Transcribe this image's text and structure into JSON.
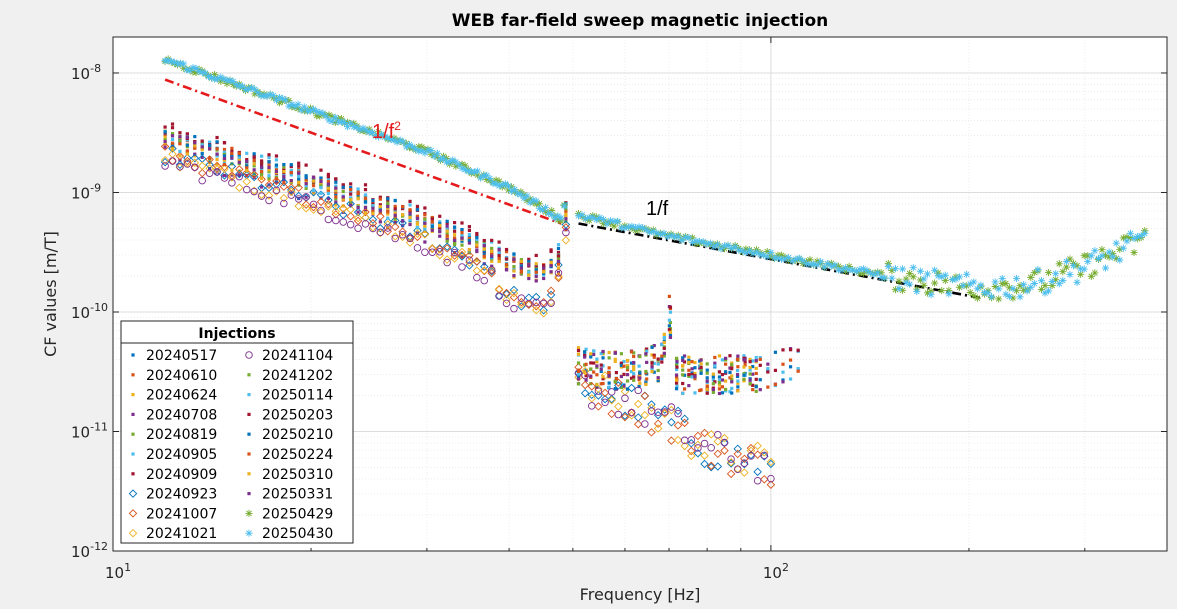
{
  "chart_data": {
    "type": "scatter",
    "title": "WEB far-field sweep magnetic injection",
    "xlabel": "Frequency [Hz]",
    "ylabel": "CF values [m/T]",
    "xscale": "log",
    "yscale": "log",
    "xlim": [
      10,
      400
    ],
    "ylim": [
      1e-12,
      2e-08
    ],
    "x_ticks": [
      {
        "value": 10,
        "base": "10",
        "exp": "1"
      },
      {
        "value": 100,
        "base": "10",
        "exp": "2"
      }
    ],
    "y_ticks": [
      {
        "value": 1e-12,
        "base": "10",
        "exp": "-12"
      },
      {
        "value": 1e-11,
        "base": "10",
        "exp": "-11"
      },
      {
        "value": 1e-10,
        "base": "10",
        "exp": "-10"
      },
      {
        "value": 1e-09,
        "base": "10",
        "exp": "-9"
      },
      {
        "value": 1e-08,
        "base": "10",
        "exp": "-8"
      }
    ],
    "grid": "on (major and minor)",
    "legend": {
      "title": "Injections",
      "placement": "bottom-left",
      "columns": 2
    },
    "series": [
      {
        "name": "20240517",
        "color": "#0072BD",
        "marker": "point",
        "type": "low_band",
        "level": 1.0
      },
      {
        "name": "20240610",
        "color": "#D95319",
        "marker": "point",
        "type": "low_band",
        "level": 1.05
      },
      {
        "name": "20240624",
        "color": "#EDB120",
        "marker": "point",
        "type": "low_band",
        "level": 0.9
      },
      {
        "name": "20240708",
        "color": "#7E2F8E",
        "marker": "point",
        "type": "low_band",
        "level": 0.8
      },
      {
        "name": "20240819",
        "color": "#77AC30",
        "marker": "point",
        "type": "low_band",
        "level": 1.0
      },
      {
        "name": "20240905",
        "color": "#4DBEEE",
        "marker": "point",
        "type": "low_band",
        "level": 1.1
      },
      {
        "name": "20240909",
        "color": "#A2142F",
        "marker": "point",
        "type": "low_band",
        "level": 1.15
      },
      {
        "name": "20240923",
        "color": "#0072BD",
        "marker": "diamond",
        "type": "low_band",
        "level": 0.75,
        "branch": "low"
      },
      {
        "name": "20241007",
        "color": "#D95319",
        "marker": "diamond",
        "type": "low_band",
        "level": 0.75,
        "branch": "low"
      },
      {
        "name": "20241021",
        "color": "#EDB120",
        "marker": "diamond",
        "type": "low_band",
        "level": 0.7,
        "branch": "low"
      },
      {
        "name": "20241104",
        "color": "#7E2F8E",
        "marker": "circle",
        "type": "low_band",
        "level": 0.65,
        "branch": "low"
      },
      {
        "name": "20241202",
        "color": "#77AC30",
        "marker": "point",
        "type": "low_band",
        "level": 1.0
      },
      {
        "name": "20250114",
        "color": "#4DBEEE",
        "marker": "point",
        "type": "low_band",
        "level": 1.0
      },
      {
        "name": "20250203",
        "color": "#A2142F",
        "marker": "point",
        "type": "low_band",
        "level": 1.2
      },
      {
        "name": "20250210",
        "color": "#0072BD",
        "marker": "point",
        "type": "low_band",
        "level": 1.1
      },
      {
        "name": "20250224",
        "color": "#D95319",
        "marker": "point",
        "type": "low_band",
        "level": 1.0
      },
      {
        "name": "20250310",
        "color": "#EDB120",
        "marker": "point",
        "type": "low_band",
        "level": 0.95
      },
      {
        "name": "20250331",
        "color": "#7E2F8E",
        "marker": "point",
        "type": "low_band",
        "level": 1.0
      },
      {
        "name": "20250429",
        "color": "#77AC30",
        "marker": "asterisk",
        "type": "high_band"
      },
      {
        "name": "20250430",
        "color": "#4DBEEE",
        "marker": "asterisk",
        "type": "high_band"
      }
    ],
    "band_models": {
      "low_band_main": [
        [
          12,
          2.8e-09
        ],
        [
          20,
          1.2e-09
        ],
        [
          30,
          5.5e-10
        ],
        [
          40,
          2.6e-10
        ],
        [
          45,
          2.2e-10
        ],
        [
          48,
          3e-10
        ],
        [
          49,
          8e-10
        ]
      ],
      "low_band_after": [
        [
          51,
          3.5e-11
        ],
        [
          60,
          3.2e-11
        ],
        [
          68,
          3.8e-11
        ],
        [
          70,
          1e-10
        ],
        [
          72,
          3e-11
        ],
        [
          90,
          3e-11
        ],
        [
          110,
          3.5e-11
        ]
      ],
      "low_branch_after": [
        [
          51,
          2.5e-11
        ],
        [
          60,
          1.8e-11
        ],
        [
          70,
          1.2e-11
        ],
        [
          80,
          7e-12
        ],
        [
          90,
          6e-12
        ],
        [
          100,
          5e-12
        ]
      ],
      "high_band_before": [
        [
          12,
          1.3e-08
        ],
        [
          20,
          4.8e-09
        ],
        [
          30,
          2.2e-09
        ],
        [
          40,
          1.1e-09
        ],
        [
          48,
          6e-10
        ],
        [
          49,
          1e-09
        ]
      ],
      "high_band_after": [
        [
          51,
          6.5e-10
        ],
        [
          70,
          4.3e-10
        ],
        [
          100,
          3e-10
        ],
        [
          150,
          2e-10
        ],
        [
          200,
          1.6e-10
        ],
        [
          250,
          1.7e-10
        ],
        [
          300,
          2.4e-10
        ],
        [
          370,
          4e-10
        ]
      ]
    },
    "reference_lines": [
      {
        "label_base": "1/f",
        "label_exp": "2",
        "color": "#e41a1c",
        "x": [
          12,
          48
        ],
        "y": [
          8.8e-09,
          5.5e-10
        ]
      },
      {
        "label_base": "1/f",
        "label_exp": "",
        "color": "#000000",
        "x": [
          51,
          210
        ],
        "y": [
          5.5e-10,
          1.3e-10
        ]
      }
    ]
  }
}
